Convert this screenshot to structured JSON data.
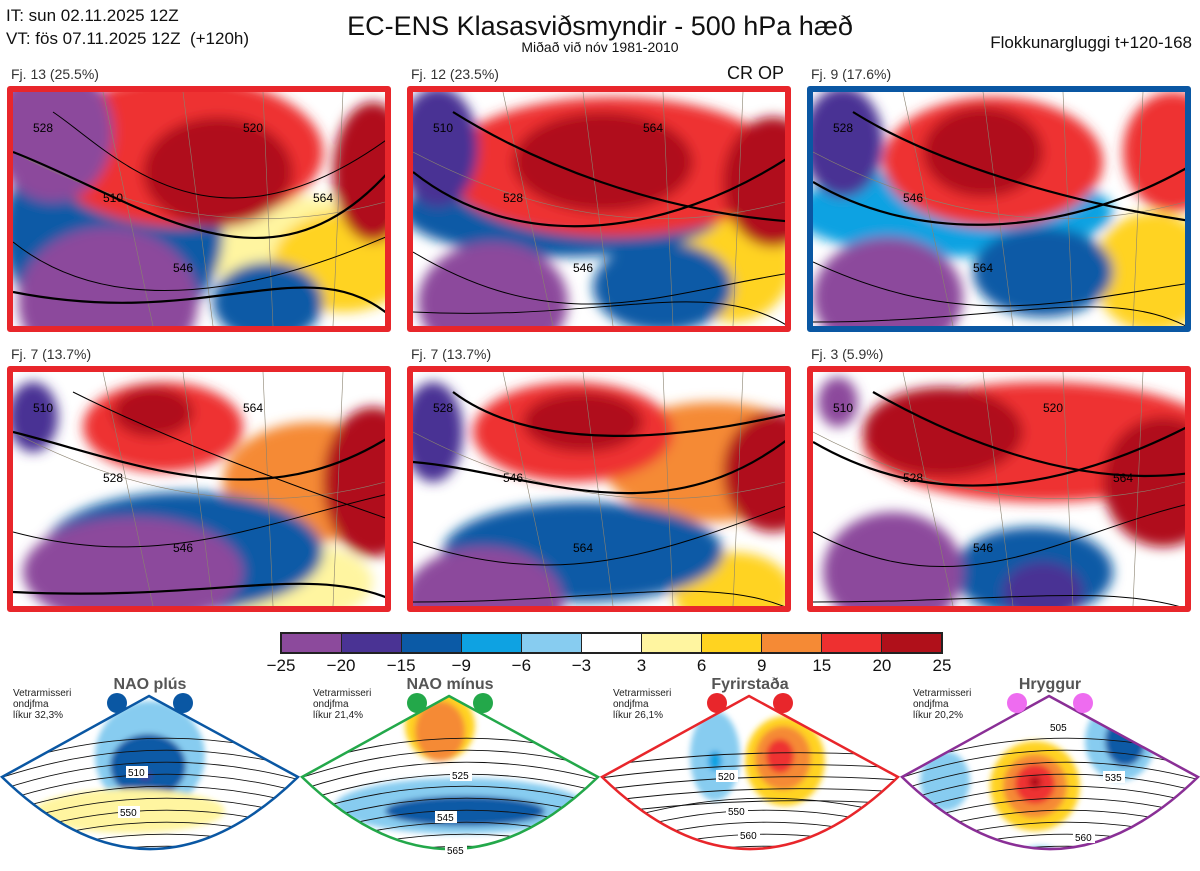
{
  "header": {
    "init_time": "IT: sun 02.11.2025 12Z",
    "valid_time": "VT: fös 07.11.2025 12Z  (+120h)",
    "title": "EC-ENS Klasasviðsmyndir - 500 hPa hæð",
    "subtitle": "Miðað við nóv 1981-2010",
    "window": "Flokkunargluggi t+120-168",
    "crop_label": "CR OP"
  },
  "panels": [
    {
      "label": "Fj. 13 (25.5%)",
      "regime_color": "#e8262b",
      "contours": [
        "528",
        "510",
        "546",
        "520",
        "564"
      ]
    },
    {
      "label": "Fj. 12 (23.5%)",
      "regime_color": "#e8262b",
      "contours": [
        "510",
        "528",
        "546",
        "564"
      ]
    },
    {
      "label": "Fj. 9 (17.6%)",
      "regime_color": "#0a57a3",
      "contours": [
        "528",
        "546",
        "564"
      ]
    },
    {
      "label": "Fj. 7 (13.7%)",
      "regime_color": "#e8262b",
      "contours": [
        "510",
        "528",
        "546",
        "564"
      ]
    },
    {
      "label": "Fj. 7 (13.7%)",
      "regime_color": "#e8262b",
      "contours": [
        "528",
        "546",
        "564"
      ]
    },
    {
      "label": "Fj. 3 (5.9%)",
      "regime_color": "#e8262b",
      "contours": [
        "510",
        "528",
        "546",
        "520",
        "564"
      ]
    }
  ],
  "chart_data": {
    "type": "heatmap",
    "title": "EC-ENS Klasasviðsmyndir - 500 hPa hæð",
    "colorbar": {
      "ticks": [
        "−25",
        "−20",
        "−15",
        "−9",
        "−6",
        "−3",
        "3",
        "6",
        "9",
        "15",
        "20",
        "25"
      ],
      "bins": [
        {
          "from": -25,
          "to": -20,
          "color": "#8c4a9c"
        },
        {
          "from": -20,
          "to": -15,
          "color": "#4a3394"
        },
        {
          "from": -15,
          "to": -9,
          "color": "#0b5aa6"
        },
        {
          "from": -9,
          "to": -6,
          "color": "#0ea2e2"
        },
        {
          "from": -6,
          "to": -3,
          "color": "#87ccf0"
        },
        {
          "from": -3,
          "to": 3,
          "color": "#ffffff"
        },
        {
          "from": 3,
          "to": 6,
          "color": "#fff5a0"
        },
        {
          "from": 6,
          "to": 9,
          "color": "#ffd320"
        },
        {
          "from": 9,
          "to": 15,
          "color": "#f58a35"
        },
        {
          "from": 15,
          "to": 20,
          "color": "#ee3030"
        },
        {
          "from": 20,
          "to": 25,
          "color": "#b0101a"
        }
      ]
    }
  },
  "regimes": [
    {
      "name": "NAO plús",
      "info": [
        "Vetrarmisseri",
        "ondjfma",
        "líkur 32,3%"
      ],
      "color": "#0a57a3",
      "contour_labels": [
        "510",
        "550"
      ]
    },
    {
      "name": "NAO mínus",
      "info": [
        "Vetrarmisseri",
        "ondjfma",
        "líkur 21,4%"
      ],
      "color": "#23a84a",
      "contour_labels": [
        "525",
        "545",
        "565"
      ]
    },
    {
      "name": "Fyrirstaða",
      "info": [
        "Vetrarmisseri",
        "ondjfma",
        "líkur 26,1%"
      ],
      "color": "#e8262b",
      "contour_labels": [
        "520",
        "550",
        "560"
      ]
    },
    {
      "name": "Hryggur",
      "info": [
        "Vetrarmisseri",
        "ondjfma",
        "líkur 20,2%"
      ],
      "color": "#8a2f96",
      "circle_color": "#ee6cf0",
      "contour_labels": [
        "505",
        "535",
        "560"
      ]
    }
  ]
}
